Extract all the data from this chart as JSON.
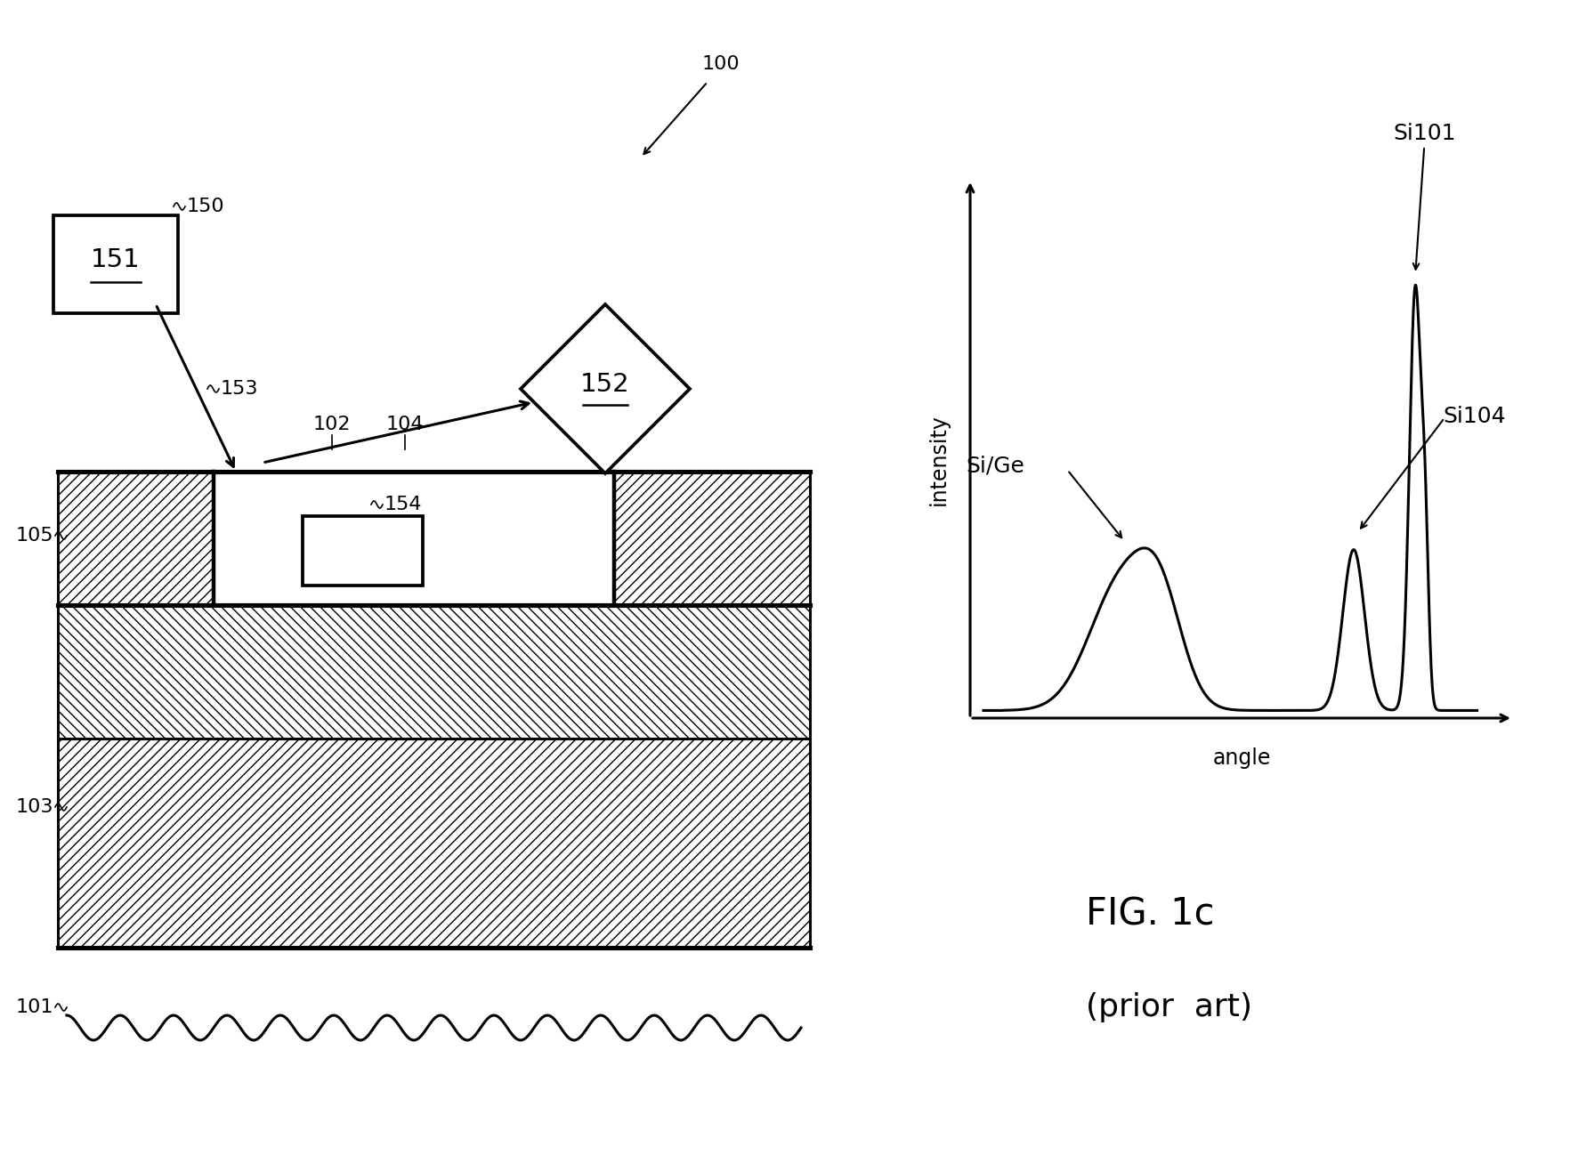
{
  "bg_color": "#ffffff",
  "fig_label": "FIG. 1c",
  "fig_sublabel": "(prior  art)",
  "label_100": "100",
  "label_150": "150",
  "label_151": "151",
  "label_152": "152",
  "label_153": "153",
  "label_154": "154",
  "label_101": "101",
  "label_102": "102",
  "label_103": "103",
  "label_104": "104",
  "label_105": "105",
  "graph_xlabel": "angle",
  "graph_ylabel": "intensity",
  "graph_Si101": "Si101",
  "graph_Si104": "Si104",
  "graph_SiGe": "Si/Ge",
  "line_color": "#000000",
  "fs_label": 15,
  "fs_fig": 30,
  "fs_graph": 15
}
